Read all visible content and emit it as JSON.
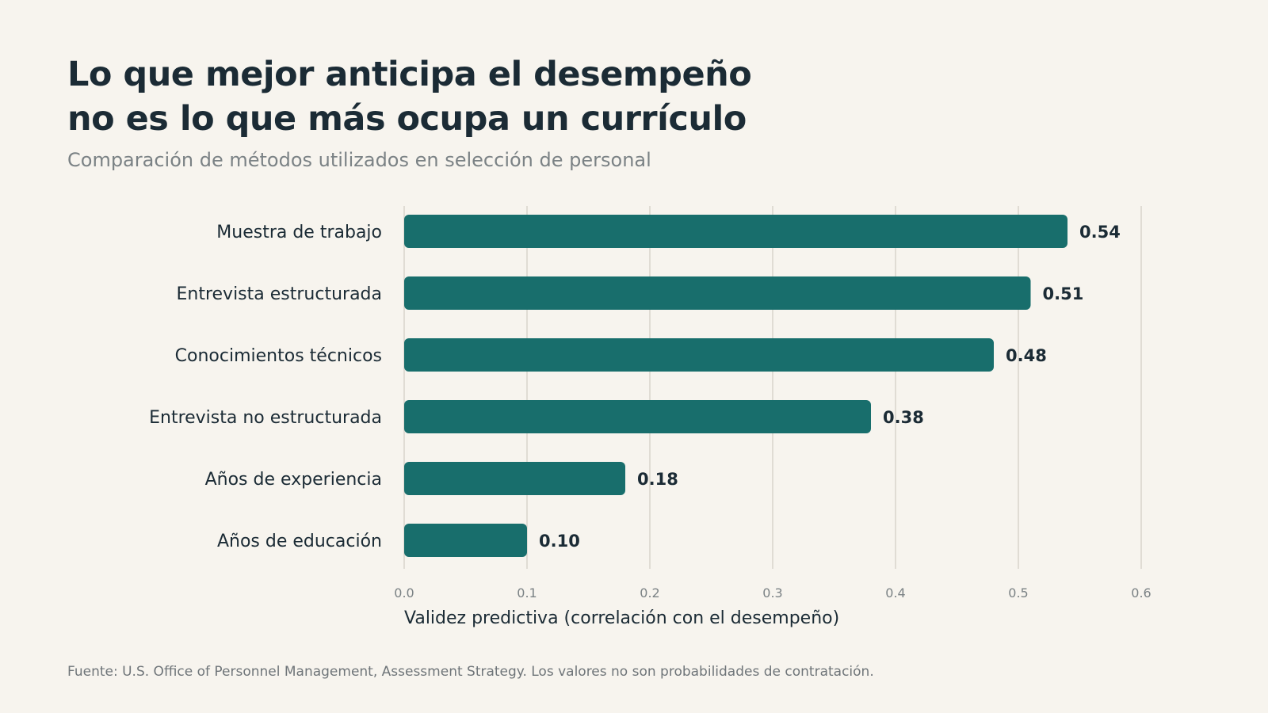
{
  "header": {
    "title_line1": "Lo que mejor anticipa el desempeño",
    "title_line2": "no es lo que más ocupa un currículo",
    "subtitle": "Comparación de métodos utilizados en selección de personal"
  },
  "chart_data": {
    "type": "bar",
    "orientation": "horizontal",
    "categories": [
      "Muestra de trabajo",
      "Entrevista estructurada",
      "Conocimientos técnicos",
      "Entrevista no estructurada",
      "Años de experiencia",
      "Años de educación"
    ],
    "values": [
      0.54,
      0.51,
      0.48,
      0.38,
      0.18,
      0.1
    ],
    "value_labels": [
      "0.54",
      "0.51",
      "0.48",
      "0.38",
      "0.18",
      "0.10"
    ],
    "xlabel": "Validez predictiva (correlación con el desempeño)",
    "xlim": [
      0,
      0.6
    ],
    "xticks": [
      0.0,
      0.1,
      0.2,
      0.3,
      0.4,
      0.5,
      0.6
    ],
    "xtick_labels": [
      "0.0",
      "0.1",
      "0.2",
      "0.3",
      "0.4",
      "0.5",
      "0.6"
    ],
    "grid": "vertical",
    "legend": "none",
    "bar_color": "#186e6c",
    "grid_color": "#d8d4cc"
  },
  "footer": {
    "source": "Fuente: U.S. Office of Personnel Management, Assessment Strategy. Los valores no son probabilidades de contratación."
  }
}
